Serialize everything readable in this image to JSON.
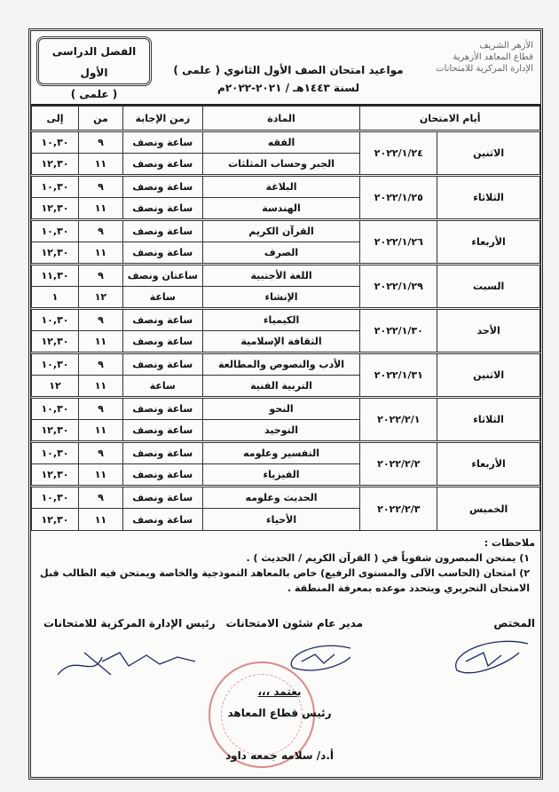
{
  "header": {
    "org_lines": [
      "الأزهر الشريف",
      "قطاع المعاهد الأزهرية",
      "الإدارة المركزية للامتحانات"
    ],
    "term": "الفصل الدراسى الأول",
    "branch": "( علمى )",
    "title": "مواعيد امتحان الصف الأول الثانوي ( علمى )",
    "year": "لسنة ١٤٤٣هـ / ٢٠٢١-٢٠٢٢م"
  },
  "table": {
    "columns": [
      "أيام الامتحان",
      "المادة",
      "زمن الإجابة",
      "من",
      "إلى"
    ],
    "days": [
      {
        "day": "الاثنين",
        "date": "٢٠٢٢/١/٢٤",
        "rows": [
          [
            "الفقه",
            "ساعة ونصف",
            "٩",
            "١٠,٣٠"
          ],
          [
            "الجبر وحساب المثلثات",
            "ساعة ونصف",
            "١١",
            "١٢,٣٠"
          ]
        ]
      },
      {
        "day": "الثلاثاء",
        "date": "٢٠٢٢/١/٢٥",
        "rows": [
          [
            "البلاغة",
            "ساعة ونصف",
            "٩",
            "١٠,٣٠"
          ],
          [
            "الهندسة",
            "ساعة ونصف",
            "١١",
            "١٢,٣٠"
          ]
        ]
      },
      {
        "day": "الأربعاء",
        "date": "٢٠٢٢/١/٢٦",
        "rows": [
          [
            "القرآن الكريم",
            "ساعة ونصف",
            "٩",
            "١٠,٣٠"
          ],
          [
            "الصرف",
            "ساعة ونصف",
            "١١",
            "١٢,٣٠"
          ]
        ]
      },
      {
        "day": "السبت",
        "date": "٢٠٢٢/١/٢٩",
        "rows": [
          [
            "اللغة الأجنبية",
            "ساعتان ونصف",
            "٩",
            "١١,٣٠"
          ],
          [
            "الإنشاء",
            "ساعة",
            "١٢",
            "١"
          ]
        ]
      },
      {
        "day": "الأحد",
        "date": "٢٠٢٢/١/٣٠",
        "rows": [
          [
            "الكيمياء",
            "ساعة ونصف",
            "٩",
            "١٠,٣٠"
          ],
          [
            "الثقافة الإسلامية",
            "ساعة ونصف",
            "١١",
            "١٢,٣٠"
          ]
        ]
      },
      {
        "day": "الاثنين",
        "date": "٢٠٢٢/١/٣١",
        "rows": [
          [
            "الأدب والنصوص والمطالعة",
            "ساعة ونصف",
            "٩",
            "١٠,٣٠"
          ],
          [
            "التربية الفنية",
            "ساعة",
            "١١",
            "١٢"
          ]
        ]
      },
      {
        "day": "الثلاثاء",
        "date": "٢٠٢٢/٢/١",
        "rows": [
          [
            "النحو",
            "ساعة ونصف",
            "٩",
            "١٠,٣٠"
          ],
          [
            "التوحيد",
            "ساعة ونصف",
            "١١",
            "١٢,٣٠"
          ]
        ]
      },
      {
        "day": "الأربعاء",
        "date": "٢٠٢٢/٢/٢",
        "rows": [
          [
            "التفسير وعلومه",
            "ساعة ونصف",
            "٩",
            "١٠,٣٠"
          ],
          [
            "الفيزياء",
            "ساعة ونصف",
            "١١",
            "١٢,٣٠"
          ]
        ]
      },
      {
        "day": "الخميس",
        "date": "٢٠٢٢/٢/٣",
        "rows": [
          [
            "الحديث وعلومه",
            "ساعة ونصف",
            "٩",
            "١٠,٣٠"
          ],
          [
            "الأحياء",
            "ساعة ونصف",
            "١١",
            "١٢,٣٠"
          ]
        ]
      }
    ]
  },
  "notes": {
    "heading": "ملاحظات :",
    "items": [
      "١) يمتحن المبصرون شفوياً في ( القرآن الكريم / الحديث ) .",
      "٢) امتحان (الحاسب الآلى والمستوى الرفيع) خاص بالمعاهد النموذجية والخاصة ويمتحن فيه الطالب قبل الامتحان التحريري ويتحدد موعده بمعرفة المنطقة ."
    ]
  },
  "signatures": {
    "clerk": "المختص",
    "director": "مدير عام شئون الامتحانات",
    "head": "رئيس الإدارة المركزية للامتحانات"
  },
  "approval": {
    "label": "يعتمد ،،،",
    "role": "رئيس قطاع المعاهد",
    "name": "أ.د/ سلامه جمعه داود"
  },
  "colors": {
    "stamp": "#c83c3c",
    "signature_ink": "#1a2a6a"
  }
}
